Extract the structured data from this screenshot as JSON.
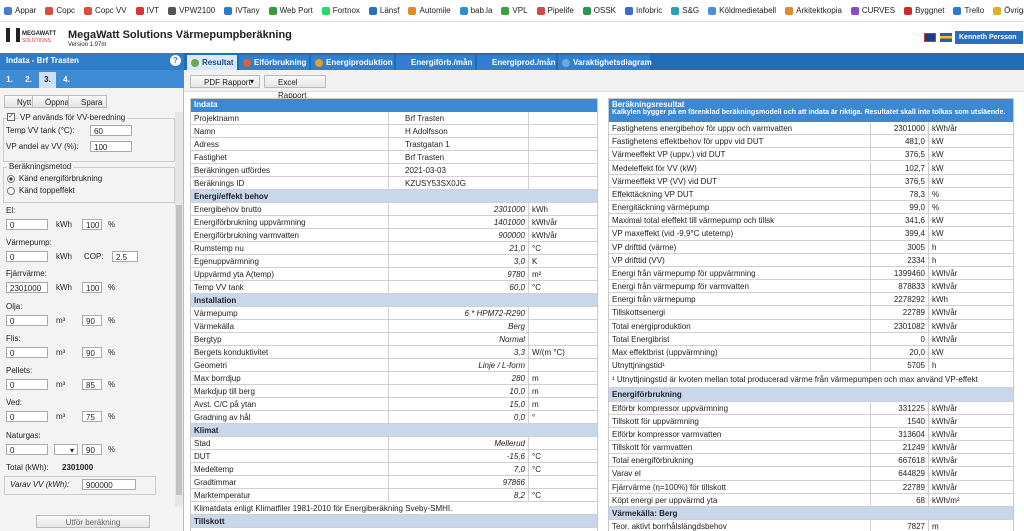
{
  "bookmarks": [
    "Appar",
    "Copc",
    "Copc VV",
    "IVT",
    "VPW2100",
    "IVTany",
    "Web Port",
    "Fortnox",
    "Länsf",
    "Automile",
    "bab.la",
    "VPL",
    "Pipelife",
    "OSSK",
    "Infobric",
    "S&G",
    "Köldmedietabell",
    "Arkitektkopia",
    "CURVES",
    "Byggnet",
    "Trello",
    "Övriga bokmärken"
  ],
  "header": {
    "logo_top": "MEGAWATT",
    "logo_bottom": "SOLUTIONS",
    "title": "MegaWatt Solutions Värmepumpberäkning",
    "version": "Version 1.97m",
    "user": "Kenneth Persson"
  },
  "left_panel": {
    "title": "Indata - Brf Trasten",
    "help": "?",
    "steps": [
      "1.",
      "2.",
      "3.",
      "4."
    ],
    "active_step": 2,
    "toolbar": [
      "Nytt",
      "Öppna",
      "Spara"
    ],
    "vv": {
      "legend": "VP används för VV-beredning",
      "checked": true,
      "fields": [
        {
          "label": "Temp VV tank (°C):",
          "value": "60"
        },
        {
          "label": "VP andel av VV (%):",
          "value": "100"
        }
      ]
    },
    "method": {
      "legend": "Beräkningsmetod",
      "options": [
        "Känd energiförbrukning",
        "Känd toppeffekt"
      ],
      "selected": 0
    },
    "sources": [
      {
        "label": "El:",
        "value": "0",
        "unit": "kWh",
        "share": "100",
        "share_unit": "%"
      },
      {
        "label": "Värmepump:",
        "value": "0",
        "unit": "kWh",
        "cop_label": "COP:",
        "cop": "2.5"
      },
      {
        "label": "Fjärrvärme:",
        "value": "2301000",
        "unit": "kWh",
        "share": "100",
        "share_unit": "%"
      },
      {
        "label": "Olja:",
        "value": "0",
        "unit": "m³",
        "share": "90",
        "share_unit": "%"
      },
      {
        "label": "Flis:",
        "value": "0",
        "unit": "m³",
        "share": "90",
        "share_unit": "%"
      },
      {
        "label": "Pellets:",
        "value": "0",
        "unit": "m³",
        "share": "85",
        "share_unit": "%"
      },
      {
        "label": "Ved:",
        "value": "0",
        "unit": "m³",
        "share": "75",
        "share_unit": "%"
      },
      {
        "label": "Naturgas:",
        "value": "0",
        "share": "90",
        "share_unit": "%"
      }
    ],
    "total_label": "Total (kWh):",
    "total": "2301000",
    "vv_label": "Varav VV (kWh):",
    "vv_value": "900000",
    "run": "Utför beräkning"
  },
  "main": {
    "tabs": [
      "Resultat",
      "Elförbrukning",
      "Energiproduktion",
      "Energiförb./mån",
      "Energiprod./mån",
      "Varaktighetsdiagram"
    ],
    "active_tab": 0,
    "buttons": [
      "PDF Rapport",
      "Excel Rapport"
    ],
    "input_table": {
      "title": "Indata",
      "rows": [
        [
          "Projektnamn",
          "Brf Trasten"
        ],
        [
          "Namn",
          "H Adolfsson"
        ],
        [
          "Adress",
          "Trastgatan 1"
        ],
        [
          "Fastighet",
          "Brf Trasten"
        ],
        [
          "Beräkningen utfördes",
          "2021-03-03"
        ],
        [
          "Beräknings ID",
          "KZUSY53SX0JG"
        ],
        {
          "section": "Energi/effekt behov"
        },
        [
          "Energibehov brutto",
          "2301000",
          "kWh"
        ],
        [
          "Energiförbrukning uppvärmning",
          "1401000",
          "kWh/år"
        ],
        [
          "Energiförbrukning varmvatten",
          "900000",
          "kWh/år"
        ],
        [
          "Rumstemp nu",
          "21,0",
          "°C"
        ],
        [
          "Egenuppvärmning",
          "3,0",
          "K"
        ],
        [
          "Uppvärmd yta A(temp)",
          "9780",
          "m²"
        ],
        [
          "Temp VV tank",
          "60,0",
          "°C"
        ],
        {
          "section": "Installation"
        },
        [
          "Värmepump",
          "6 * HPM72-R290"
        ],
        [
          "Värmekälla",
          "Berg"
        ],
        [
          "Bergtyp",
          "Normal"
        ],
        [
          "Bergets konduktivitet",
          "3,3",
          "W/(m °C)"
        ],
        [
          "Geometri",
          "Linje / L-form"
        ],
        [
          "Max borrdjup",
          "280",
          "m"
        ],
        [
          "Markdjup till berg",
          "10,0",
          "m"
        ],
        [
          "Avst. C/C på ytan",
          "15,0",
          "m"
        ],
        [
          "Gradning av hål",
          "0,0",
          "°"
        ],
        {
          "section": "Klimat"
        },
        [
          "Stad",
          "Mellerud"
        ],
        [
          "DUT",
          "-15,6",
          "°C"
        ],
        [
          "Medeltemp",
          "7,0",
          "°C"
        ],
        [
          "Gradtimmar",
          "97866"
        ],
        [
          "Marktemperatur",
          "8,2",
          "°C"
        ],
        [
          "Klimatdata enligt Klimatfiler 1981-2010 för Energiberäkning Sveby-SMHI."
        ],
        {
          "section": "Tillskott"
        }
      ]
    },
    "result_table": {
      "title": "Beräkningsresultat",
      "note": "Kalkylen bygger på en förenklad beräkningsmodell och att indata är riktiga. Resultatet skall inte tolkas som utsläende.",
      "rows": [
        [
          "Fastighetens energibehov för uppv och varmvatten",
          "2301000",
          "kWh/år"
        ],
        [
          "Fastighetens effektbehov för uppv vid DUT",
          "481,0",
          "kW"
        ],
        [
          "Värmeeffekt VP (uppv.) vid DUT",
          "376,5",
          "kW"
        ],
        [
          "Medeleffekt för VV (kW)",
          "102,7",
          "kW"
        ],
        [
          "Värmeeffekt VP (VV) vid DUT",
          "376,5",
          "kW"
        ],
        [
          "Effekttäckning VP DUT",
          "78,3",
          "%"
        ],
        [
          "Energitäckning värmepump",
          "99,0",
          "%"
        ],
        [
          "Maximal total eleffekt till värmepump och tillsk",
          "341,6",
          "kW"
        ],
        [
          "VP maxeffekt (vid -9,9°C utetemp)",
          "399,4",
          "kW"
        ],
        [
          "VP drifttid (värme)",
          "3005",
          "h"
        ],
        [
          "VP drifttid (VV)",
          "2334",
          "h"
        ],
        [
          "Energi från värmepump för uppvärmning",
          "1399460",
          "kWh/år"
        ],
        [
          "Energi från värmepump för varmvatten",
          "878833",
          "kWh/år"
        ],
        [
          "Energi från värmepump",
          "2278292",
          "kWh"
        ],
        [
          "Tillskottsenergi",
          "22789",
          "kWh/år"
        ],
        [
          "Total energiproduktion",
          "2301082",
          "kWh/år"
        ],
        [
          "Total Energibrist",
          "0",
          "kWh/år"
        ],
        [
          "Max effektbrist (uppvärmning)",
          "20,0",
          "kW"
        ],
        [
          "Utnyttjningstid¹",
          "5705",
          "h"
        ],
        {
          "note": "¹ Utnyttjningstid är kvoten mellan total producerad värme från värmepumpen och max använd VP-effekt"
        },
        {
          "section": "Energiförbrukning"
        },
        [
          "Elförbr kompressor uppvärmning",
          "331225",
          "kWh/år"
        ],
        [
          "Tillskott för uppvärmning",
          "1540",
          "kWh/år"
        ],
        [
          "Elförbr kompressor varmvatten",
          "313604",
          "kWh/år"
        ],
        [
          "Tillskott för varmvatten",
          "21249",
          "kWh/år"
        ],
        [
          "Total energiförbrukning",
          "667618",
          "kWh/år"
        ],
        [
          "Varav el",
          "644829",
          "kWh/år"
        ],
        [
          "Fjärrvärme (η=100%) för tillskott",
          "22789",
          "kWh/år"
        ],
        [
          "Köpt energi per uppvärmd yta",
          "68",
          "kWh/m²"
        ],
        {
          "section": "Värmekälla: Berg"
        },
        [
          "Teor. aktivt borrhålslängdsbehov",
          "7827",
          "m"
        ]
      ]
    }
  }
}
